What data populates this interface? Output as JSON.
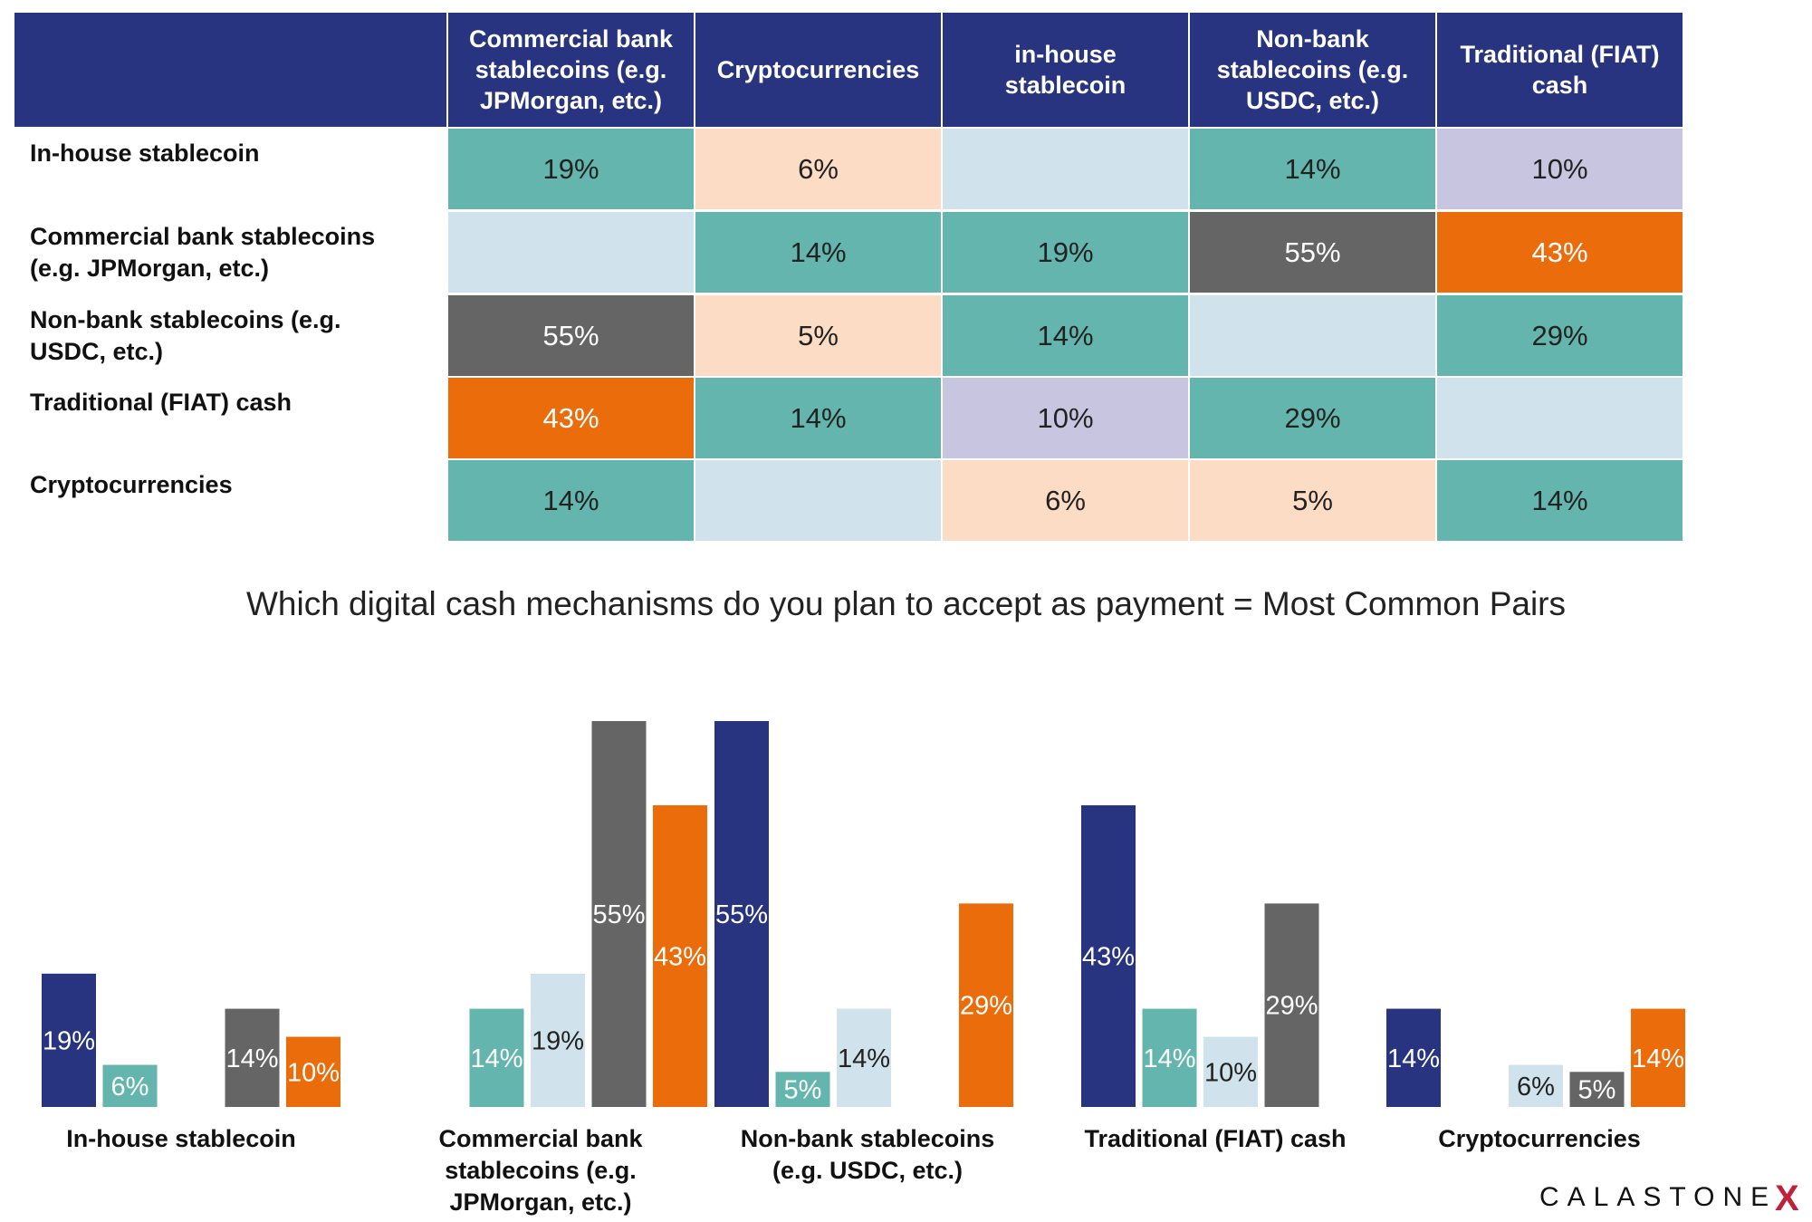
{
  "colors": {
    "header_bg": "#283480",
    "teal": "#63b5ae",
    "peach": "#fcdcc4",
    "light_blue": "#d0e3ed",
    "lavender": "#c8c5e1",
    "gray": "#666565",
    "orange": "#eb6c0b",
    "navy": "#283480"
  },
  "table": {
    "columns": [
      "Commercial bank stablecoins (e.g. JPMorgan, etc.)",
      "Cryptocurrencies",
      "in-house stablecoin",
      "Non-bank stablecoins (e.g. USDC, etc.)",
      "Traditional (FIAT) cash"
    ],
    "rows": [
      {
        "label": "In-house stablecoin",
        "cells": [
          {
            "v": "19%",
            "c": "teal"
          },
          {
            "v": "6%",
            "c": "peach"
          },
          {
            "v": "",
            "c": "light_blue"
          },
          {
            "v": "14%",
            "c": "teal"
          },
          {
            "v": "10%",
            "c": "lavender"
          }
        ]
      },
      {
        "label": "Commercial bank stablecoins (e.g. JPMorgan, etc.)",
        "cells": [
          {
            "v": "",
            "c": "light_blue"
          },
          {
            "v": "14%",
            "c": "teal"
          },
          {
            "v": "19%",
            "c": "teal"
          },
          {
            "v": "55%",
            "c": "gray"
          },
          {
            "v": "43%",
            "c": "orange"
          }
        ]
      },
      {
        "label": "Non-bank stablecoins (e.g. USDC, etc.)",
        "cells": [
          {
            "v": "55%",
            "c": "gray"
          },
          {
            "v": "5%",
            "c": "peach"
          },
          {
            "v": "14%",
            "c": "teal"
          },
          {
            "v": "",
            "c": "light_blue"
          },
          {
            "v": "29%",
            "c": "teal"
          }
        ]
      },
      {
        "label": "Traditional (FIAT) cash",
        "cells": [
          {
            "v": "43%",
            "c": "orange"
          },
          {
            "v": "14%",
            "c": "teal"
          },
          {
            "v": "10%",
            "c": "lavender"
          },
          {
            "v": "29%",
            "c": "teal"
          },
          {
            "v": "",
            "c": "light_blue"
          }
        ]
      },
      {
        "label": "Cryptocurrencies",
        "cells": [
          {
            "v": "14%",
            "c": "teal"
          },
          {
            "v": "",
            "c": "light_blue"
          },
          {
            "v": "6%",
            "c": "peach"
          },
          {
            "v": "5%",
            "c": "peach"
          },
          {
            "v": "14%",
            "c": "teal"
          }
        ]
      }
    ]
  },
  "chart_data": {
    "type": "bar",
    "title": "Which digital cash mechanisms do you plan to accept as payment = Most Common Pairs",
    "categories": [
      "In-house stablecoin",
      "Commercial bank stablecoins (e.g. JPMorgan, etc.)",
      "Non-bank stablecoins (e.g. USDC, etc.)",
      "Traditional (FIAT) cash",
      "Cryptocurrencies"
    ],
    "series_colors": [
      "navy",
      "teal",
      "light_blue",
      "gray",
      "orange"
    ],
    "groups": [
      [
        {
          "v": 19,
          "label": "19%"
        },
        {
          "v": 6,
          "label": "6%"
        },
        null,
        {
          "v": 14,
          "label": "14%"
        },
        {
          "v": 10,
          "label": "10%"
        }
      ],
      [
        null,
        {
          "v": 14,
          "label": "14%"
        },
        {
          "v": 19,
          "label": "19%"
        },
        {
          "v": 55,
          "label": "55%"
        },
        {
          "v": 43,
          "label": "43%"
        }
      ],
      [
        {
          "v": 55,
          "label": "55%"
        },
        {
          "v": 5,
          "label": "5%"
        },
        {
          "v": 14,
          "label": "14%"
        },
        null,
        {
          "v": 29,
          "label": "29%"
        }
      ],
      [
        {
          "v": 43,
          "label": "43%"
        },
        {
          "v": 14,
          "label": "14%"
        },
        {
          "v": 10,
          "label": "10%"
        },
        {
          "v": 29,
          "label": "29%"
        },
        null
      ],
      [
        {
          "v": 14,
          "label": "14%"
        },
        null,
        {
          "v": 6,
          "label": "6%"
        },
        {
          "v": 5,
          "label": "5%"
        },
        {
          "v": 14,
          "label": "14%"
        }
      ]
    ],
    "category_label_lines": [
      [
        "In-house stablecoin"
      ],
      [
        "Commercial bank",
        "stablecoins (e.g.",
        "JPMorgan, etc.)"
      ],
      [
        "Non-bank stablecoins",
        "(e.g. USDC, etc.)"
      ],
      [
        "Traditional (FIAT) cash"
      ],
      [
        "Cryptocurrencies"
      ]
    ],
    "ylim": [
      0,
      55
    ],
    "xlabel": "",
    "ylabel": "",
    "legend": "none",
    "grid": false
  },
  "logo": {
    "text": "CALASTONE",
    "mark": "X"
  }
}
